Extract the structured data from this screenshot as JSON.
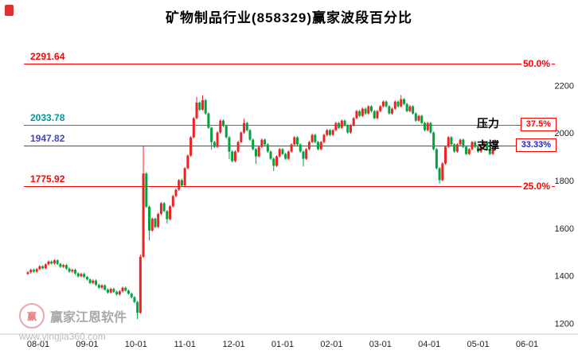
{
  "title": "矿物制品行业(858329)赢家波段百分比",
  "annotations": {
    "pressure": "压力",
    "support": "支撑"
  },
  "watermark": {
    "logo_text": "赢",
    "brand": "赢家江恩软件",
    "url": "www.yingjia360.com"
  },
  "chart_data": {
    "type": "candlestick",
    "title": "矿物制品行业(858329)赢家波段百分比",
    "up_color": "#ee2222",
    "down_color": "#00a33e",
    "y_axis": {
      "ticks": [
        2200,
        2000,
        1800,
        1600,
        1400,
        1200
      ],
      "min": 1155,
      "max": 2375
    },
    "x_axis": {
      "labels": [
        "08-01",
        "09-01",
        "10-01",
        "11-01",
        "12-01",
        "01-01",
        "02-01",
        "03-01",
        "04-01",
        "05-01",
        "06-01"
      ]
    },
    "levels": [
      {
        "price": "2291.64",
        "value": 2291.64,
        "pct": "50.0%",
        "color": "#ff0000",
        "pct_color": "#ff0000",
        "boxed": false
      },
      {
        "price": "2033.78",
        "value": 2033.78,
        "pct": "37.5%",
        "color": "#009898",
        "pct_color": "#ff0000",
        "boxed": true
      },
      {
        "price": "1947.82",
        "value": 1947.82,
        "pct": "33.33%",
        "color": "#4444bb",
        "pct_color": "#2222cc",
        "boxed": true
      },
      {
        "price": "1775.92",
        "value": 1775.92,
        "pct": "25.0%",
        "color": "#ff0000",
        "pct_color": "#ff0000",
        "boxed": false
      }
    ],
    "candles": [
      [
        1408,
        1420,
        1403,
        1415
      ],
      [
        1415,
        1430,
        1410,
        1425
      ],
      [
        1425,
        1430,
        1413,
        1418
      ],
      [
        1418,
        1433,
        1413,
        1428
      ],
      [
        1428,
        1445,
        1423,
        1440
      ],
      [
        1440,
        1445,
        1427,
        1432
      ],
      [
        1432,
        1453,
        1427,
        1448
      ],
      [
        1448,
        1465,
        1443,
        1460
      ],
      [
        1460,
        1465,
        1447,
        1452
      ],
      [
        1452,
        1470,
        1447,
        1465
      ],
      [
        1465,
        1470,
        1445,
        1450
      ],
      [
        1450,
        1455,
        1433,
        1438
      ],
      [
        1438,
        1450,
        1433,
        1445
      ],
      [
        1445,
        1450,
        1425,
        1430
      ],
      [
        1430,
        1435,
        1413,
        1418
      ],
      [
        1418,
        1430,
        1413,
        1425
      ],
      [
        1425,
        1430,
        1405,
        1410
      ],
      [
        1410,
        1415,
        1393,
        1398
      ],
      [
        1398,
        1413,
        1393,
        1408
      ],
      [
        1408,
        1413,
        1390,
        1395
      ],
      [
        1395,
        1400,
        1380,
        1385
      ],
      [
        1385,
        1390,
        1365,
        1370
      ],
      [
        1370,
        1385,
        1365,
        1380
      ],
      [
        1380,
        1385,
        1357,
        1362
      ],
      [
        1362,
        1367,
        1345,
        1350
      ],
      [
        1350,
        1365,
        1345,
        1360
      ],
      [
        1360,
        1365,
        1337,
        1342
      ],
      [
        1342,
        1347,
        1325,
        1330
      ],
      [
        1330,
        1350,
        1325,
        1345
      ],
      [
        1345,
        1350,
        1328,
        1333
      ],
      [
        1333,
        1338,
        1317,
        1322
      ],
      [
        1322,
        1340,
        1317,
        1335
      ],
      [
        1335,
        1355,
        1330,
        1350
      ],
      [
        1350,
        1355,
        1333,
        1338
      ],
      [
        1338,
        1343,
        1320,
        1325
      ],
      [
        1325,
        1330,
        1305,
        1310
      ],
      [
        1310,
        1315,
        1285,
        1290
      ],
      [
        1290,
        1295,
        1218,
        1245
      ],
      [
        1245,
        1490,
        1240,
        1480
      ],
      [
        1480,
        1945,
        1475,
        1830
      ],
      [
        1830,
        1835,
        1685,
        1690
      ],
      [
        1690,
        1695,
        1548,
        1590
      ],
      [
        1590,
        1645,
        1585,
        1640
      ],
      [
        1640,
        1645,
        1600,
        1605
      ],
      [
        1605,
        1665,
        1600,
        1660
      ],
      [
        1660,
        1710,
        1655,
        1705
      ],
      [
        1705,
        1710,
        1667,
        1672
      ],
      [
        1672,
        1677,
        1620,
        1638
      ],
      [
        1638,
        1697,
        1633,
        1692
      ],
      [
        1692,
        1740,
        1687,
        1735
      ],
      [
        1735,
        1767,
        1730,
        1762
      ],
      [
        1762,
        1807,
        1757,
        1802
      ],
      [
        1802,
        1807,
        1775,
        1780
      ],
      [
        1780,
        1857,
        1775,
        1852
      ],
      [
        1852,
        1910,
        1847,
        1905
      ],
      [
        1905,
        1987,
        1900,
        1982
      ],
      [
        1982,
        2067,
        1977,
        2062
      ],
      [
        2062,
        2152,
        2057,
        2128
      ],
      [
        2128,
        2133,
        2093,
        2098
      ],
      [
        2098,
        2158,
        2093,
        2138
      ],
      [
        2138,
        2143,
        2077,
        2082
      ],
      [
        2082,
        2087,
        2017,
        2022
      ],
      [
        2022,
        2027,
        1930,
        1962
      ],
      [
        1962,
        1967,
        1937,
        1942
      ],
      [
        1942,
        2007,
        1937,
        2002
      ],
      [
        2002,
        2057,
        1997,
        2052
      ],
      [
        2052,
        2057,
        2025,
        2030
      ],
      [
        2030,
        2035,
        1977,
        1982
      ],
      [
        1982,
        1987,
        1890,
        1922
      ],
      [
        1922,
        1927,
        1877,
        1882
      ],
      [
        1882,
        1927,
        1877,
        1922
      ],
      [
        1922,
        1967,
        1917,
        1962
      ],
      [
        1962,
        2007,
        1957,
        2002
      ],
      [
        2002,
        2060,
        1997,
        2042
      ],
      [
        2042,
        2047,
        2007,
        2012
      ],
      [
        2012,
        2017,
        1967,
        1972
      ],
      [
        1972,
        1977,
        1927,
        1932
      ],
      [
        1932,
        1937,
        1870,
        1902
      ],
      [
        1902,
        1947,
        1897,
        1942
      ],
      [
        1942,
        1977,
        1937,
        1972
      ],
      [
        1972,
        1977,
        1947,
        1952
      ],
      [
        1952,
        1957,
        1917,
        1922
      ],
      [
        1922,
        1927,
        1887,
        1892
      ],
      [
        1892,
        1897,
        1840,
        1862
      ],
      [
        1862,
        1907,
        1857,
        1902
      ],
      [
        1902,
        1937,
        1897,
        1932
      ],
      [
        1932,
        1937,
        1907,
        1912
      ],
      [
        1912,
        1917,
        1887,
        1892
      ],
      [
        1892,
        1927,
        1887,
        1922
      ],
      [
        1922,
        1957,
        1917,
        1952
      ],
      [
        1952,
        1987,
        1947,
        1982
      ],
      [
        1982,
        1987,
        1947,
        1952
      ],
      [
        1952,
        1957,
        1917,
        1922
      ],
      [
        1922,
        1927,
        1860,
        1892
      ],
      [
        1892,
        1937,
        1887,
        1932
      ],
      [
        1932,
        1967,
        1927,
        1962
      ],
      [
        1962,
        1997,
        1957,
        1992
      ],
      [
        1992,
        1997,
        1957,
        1962
      ],
      [
        1962,
        1967,
        1927,
        1932
      ],
      [
        1932,
        1967,
        1927,
        1962
      ],
      [
        1962,
        1997,
        1957,
        1992
      ],
      [
        1992,
        2017,
        1987,
        2012
      ],
      [
        2012,
        2017,
        1987,
        1992
      ],
      [
        1992,
        2017,
        1987,
        2012
      ],
      [
        2012,
        2047,
        2007,
        2042
      ],
      [
        2042,
        2047,
        2017,
        2022
      ],
      [
        2022,
        2057,
        2017,
        2052
      ],
      [
        2052,
        2057,
        2027,
        2032
      ],
      [
        2032,
        2037,
        1997,
        2002
      ],
      [
        2002,
        2037,
        1997,
        2032
      ],
      [
        2032,
        2067,
        2027,
        2062
      ],
      [
        2062,
        2097,
        2057,
        2092
      ],
      [
        2092,
        2097,
        2067,
        2072
      ],
      [
        2072,
        2107,
        2067,
        2102
      ],
      [
        2102,
        2107,
        2077,
        2082
      ],
      [
        2082,
        2117,
        2077,
        2112
      ],
      [
        2112,
        2117,
        2087,
        2092
      ],
      [
        2092,
        2097,
        2057,
        2062
      ],
      [
        2062,
        2097,
        2057,
        2092
      ],
      [
        2092,
        2117,
        2087,
        2112
      ],
      [
        2112,
        2137,
        2107,
        2132
      ],
      [
        2132,
        2137,
        2107,
        2112
      ],
      [
        2112,
        2117,
        2077,
        2082
      ],
      [
        2082,
        2107,
        2077,
        2102
      ],
      [
        2102,
        2137,
        2097,
        2132
      ],
      [
        2132,
        2137,
        2107,
        2112
      ],
      [
        2112,
        2160,
        2107,
        2142
      ],
      [
        2142,
        2147,
        2117,
        2122
      ],
      [
        2122,
        2127,
        2087,
        2092
      ],
      [
        2092,
        2117,
        2087,
        2112
      ],
      [
        2112,
        2117,
        2077,
        2082
      ],
      [
        2082,
        2087,
        2047,
        2052
      ],
      [
        2052,
        2077,
        2047,
        2072
      ],
      [
        2072,
        2077,
        2037,
        2042
      ],
      [
        2042,
        2047,
        2007,
        2012
      ],
      [
        2012,
        2047,
        2007,
        2042
      ],
      [
        2042,
        2047,
        1997,
        2002
      ],
      [
        2002,
        2007,
        1927,
        1932
      ],
      [
        1932,
        1937,
        1847,
        1852
      ],
      [
        1852,
        1857,
        1788,
        1802
      ],
      [
        1802,
        1877,
        1797,
        1872
      ],
      [
        1872,
        1947,
        1867,
        1942
      ],
      [
        1942,
        1987,
        1937,
        1982
      ],
      [
        1982,
        1987,
        1947,
        1952
      ],
      [
        1952,
        1957,
        1917,
        1922
      ],
      [
        1922,
        1957,
        1917,
        1952
      ],
      [
        1952,
        1977,
        1947,
        1972
      ],
      [
        1972,
        1977,
        1937,
        1942
      ],
      [
        1942,
        1947,
        1907,
        1912
      ],
      [
        1912,
        1937,
        1907,
        1932
      ],
      [
        1932,
        1967,
        1927,
        1962
      ],
      [
        1962,
        1967,
        1937,
        1942
      ],
      [
        1942,
        1947,
        1917,
        1922
      ],
      [
        1922,
        1947,
        1917,
        1942
      ],
      [
        1942,
        1967,
        1937,
        1962
      ],
      [
        1962,
        1967,
        1927,
        1932
      ],
      [
        1932,
        1937,
        1907,
        1912
      ],
      [
        1912,
        1941,
        1907,
        1936
      ]
    ]
  }
}
